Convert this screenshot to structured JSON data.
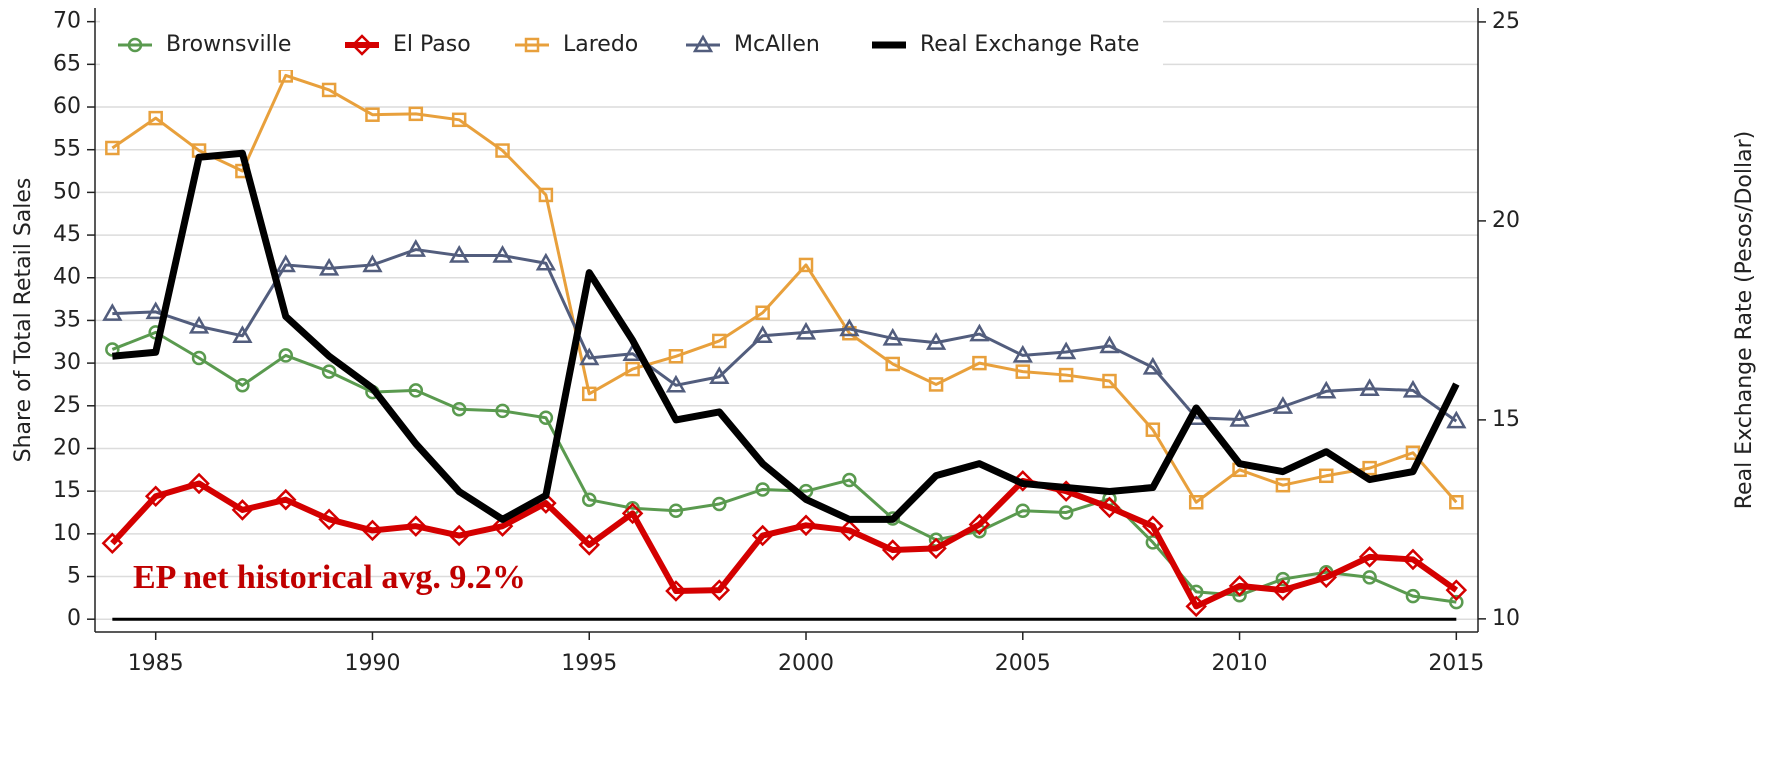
{
  "chart_data": {
    "type": "line",
    "ylabel": "Share of Total Retail Sales",
    "y2label": "Real Exchange Rate (Pesos/Dollar)",
    "annotation": "EP net historical avg. 9.2%",
    "x": [
      1984,
      1985,
      1986,
      1987,
      1988,
      1989,
      1990,
      1991,
      1992,
      1993,
      1994,
      1995,
      1996,
      1997,
      1998,
      1999,
      2000,
      2001,
      2002,
      2003,
      2004,
      2005,
      2006,
      2007,
      2008,
      2009,
      2010,
      2011,
      2012,
      2013,
      2014,
      2015
    ],
    "xlim": [
      1983.6,
      2015.5
    ],
    "xticks": [
      1985,
      1990,
      1995,
      2000,
      2005,
      2010,
      2015
    ],
    "ylim": [
      -1.5,
      71.6
    ],
    "yticks": [
      0,
      5,
      10,
      15,
      20,
      25,
      30,
      35,
      40,
      45,
      50,
      55,
      60,
      65,
      70
    ],
    "y2lim": [
      9.67,
      25.35
    ],
    "y2ticks": [
      10,
      15,
      20,
      25
    ],
    "grid": true,
    "reference_line": 0,
    "series": [
      {
        "name": "Brownsville",
        "color": "#5a9a4f",
        "marker": "circle",
        "width": 3,
        "values": [
          31.6,
          33.6,
          30.6,
          27.4,
          30.9,
          29.0,
          26.6,
          26.8,
          24.6,
          24.4,
          23.6,
          14.0,
          13.0,
          12.7,
          13.5,
          15.2,
          15.0,
          16.3,
          11.8,
          9.3,
          10.3,
          12.7,
          12.5,
          14.1,
          9.0,
          3.2,
          2.8,
          4.7,
          5.5,
          4.9,
          2.7,
          2.0
        ]
      },
      {
        "name": "El Paso",
        "color": "#d40000",
        "marker": "diamond",
        "width": 6,
        "values": [
          8.9,
          14.4,
          15.9,
          12.8,
          14.0,
          11.7,
          10.4,
          10.9,
          9.8,
          10.9,
          13.6,
          8.7,
          12.4,
          3.3,
          3.4,
          9.8,
          11.0,
          10.4,
          8.1,
          8.3,
          11.1,
          16.2,
          15.0,
          13.1,
          10.9,
          1.5,
          3.9,
          3.4,
          4.9,
          7.3,
          7.0,
          3.4
        ]
      },
      {
        "name": "Laredo",
        "color": "#e8a03c",
        "marker": "square",
        "width": 3,
        "values": [
          55.2,
          58.7,
          54.9,
          52.5,
          63.7,
          62.0,
          59.1,
          59.2,
          58.5,
          54.9,
          49.7,
          26.4,
          29.3,
          30.8,
          32.6,
          35.9,
          41.5,
          33.5,
          29.9,
          27.5,
          30.0,
          29.0,
          28.6,
          27.9,
          22.2,
          13.7,
          17.5,
          15.7,
          16.8,
          17.7,
          19.5,
          13.7
        ]
      },
      {
        "name": "McAllen",
        "color": "#525d7d",
        "marker": "triangle",
        "width": 3,
        "values": [
          35.8,
          36.0,
          34.3,
          33.2,
          41.5,
          41.1,
          41.5,
          43.3,
          42.6,
          42.6,
          41.7,
          30.6,
          31.1,
          27.4,
          28.4,
          33.2,
          33.6,
          34.0,
          32.9,
          32.4,
          33.4,
          30.9,
          31.3,
          32.0,
          29.5,
          23.6,
          23.4,
          24.9,
          26.7,
          27.0,
          26.8,
          23.2
        ]
      },
      {
        "name": "Real Exchange Rate",
        "color": "#000000",
        "marker": "none",
        "width": 7,
        "axis": "y2",
        "values": [
          16.6,
          16.7,
          21.6,
          21.7,
          17.6,
          16.6,
          15.8,
          14.4,
          13.2,
          12.5,
          13.1,
          18.7,
          17.0,
          15.0,
          15.2,
          13.9,
          13.0,
          12.5,
          12.5,
          13.6,
          13.9,
          13.4,
          13.3,
          13.2,
          13.3,
          15.3,
          13.9,
          13.7,
          14.2,
          13.5,
          13.7,
          15.9
        ]
      }
    ]
  }
}
